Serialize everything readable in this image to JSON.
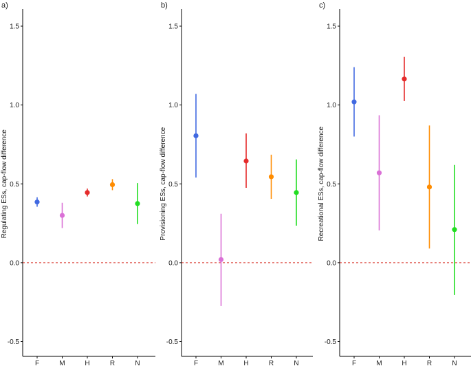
{
  "colors": {
    "F": "#4169e1",
    "M": "#da70d6",
    "H": "#e52b2b",
    "R": "#ff8c00",
    "N": "#22dd22",
    "zero_line": "#d73027"
  },
  "chart_data": [
    {
      "type": "scatter",
      "panel_tag": "a)",
      "ylabel": "Regulating ESs, cap-flow difference",
      "ylim": [
        -0.55,
        1.65
      ],
      "yticks": [
        -0.5,
        0.0,
        0.5,
        1.0,
        1.5
      ],
      "ytick_labels": [
        "-0.5",
        "0.0",
        "0.5",
        "1.0",
        "1.5"
      ],
      "categories": [
        "F",
        "M",
        "H",
        "R",
        "N"
      ],
      "values": [
        0.385,
        0.3,
        0.445,
        0.495,
        0.375
      ],
      "lower": [
        0.355,
        0.22,
        0.42,
        0.46,
        0.245
      ],
      "upper": [
        0.415,
        0.38,
        0.47,
        0.53,
        0.505
      ],
      "reference_line": 0.0,
      "grid": false
    },
    {
      "type": "scatter",
      "panel_tag": "b)",
      "ylabel": "Provisioning ESs, cap-flow difference",
      "ylim": [
        -0.55,
        1.65
      ],
      "yticks": [
        -0.5,
        0.0,
        0.5,
        1.0,
        1.5
      ],
      "ytick_labels": [
        "-0.5",
        "0.0",
        "0.5",
        "1.0",
        "1.5"
      ],
      "categories": [
        "F",
        "M",
        "H",
        "R",
        "N"
      ],
      "values": [
        0.805,
        0.02,
        0.645,
        0.545,
        0.445
      ],
      "lower": [
        0.54,
        -0.275,
        0.475,
        0.405,
        0.235
      ],
      "upper": [
        1.07,
        0.31,
        0.82,
        0.685,
        0.655
      ],
      "reference_line": 0.0,
      "grid": false
    },
    {
      "type": "scatter",
      "panel_tag": "c)",
      "ylabel": "Recreational ESs, cap-flow difference",
      "ylim": [
        -0.55,
        1.65
      ],
      "yticks": [
        -0.5,
        0.0,
        0.5,
        1.0,
        1.5
      ],
      "ytick_labels": [
        "-0.5",
        "0.0",
        "0.5",
        "1.0",
        "1.5"
      ],
      "categories": [
        "F",
        "M",
        "H",
        "R",
        "N"
      ],
      "values": [
        1.02,
        0.57,
        1.165,
        0.48,
        0.21
      ],
      "lower": [
        0.8,
        0.205,
        1.025,
        0.09,
        -0.205
      ],
      "upper": [
        1.24,
        0.935,
        1.305,
        0.87,
        0.62
      ],
      "reference_line": 0.0,
      "grid": false
    }
  ]
}
